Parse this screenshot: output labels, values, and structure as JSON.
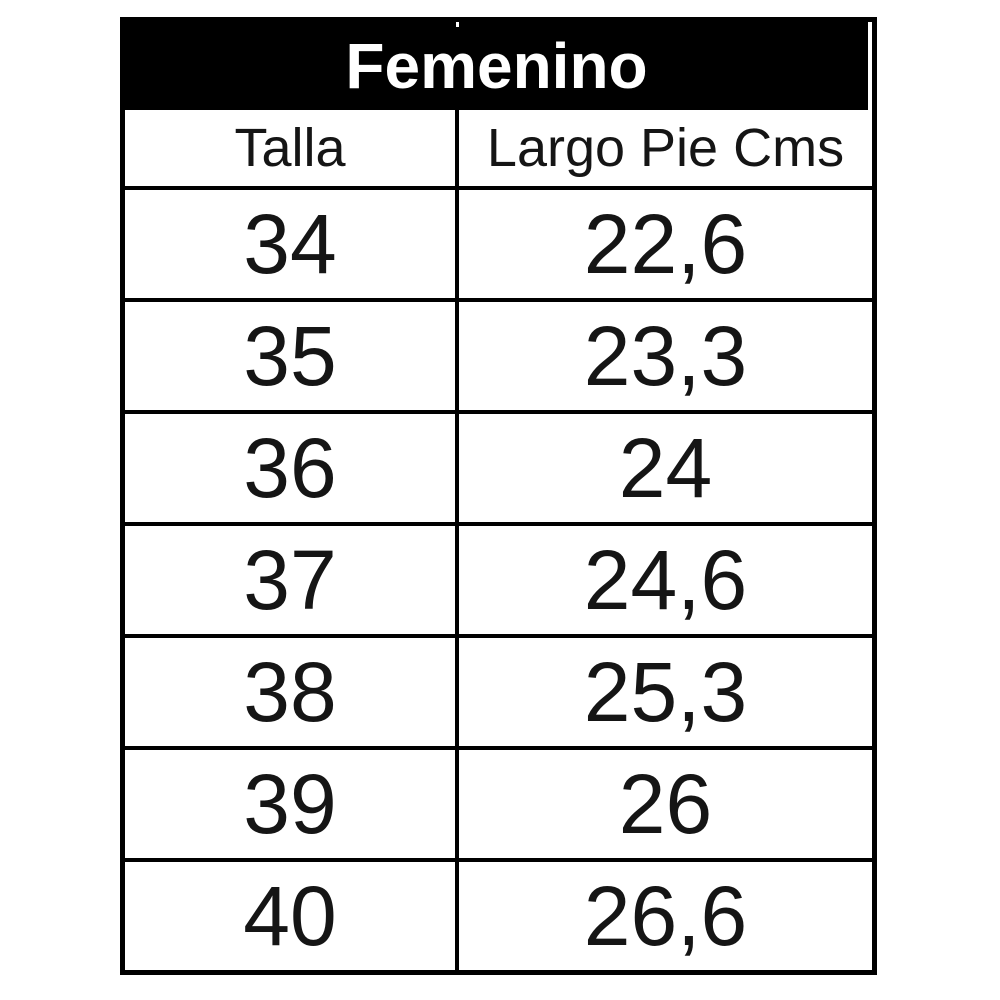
{
  "colors": {
    "title_bg": "#000000",
    "title_text": "#ffffff",
    "body_text": "#151515",
    "border": "#000000",
    "background": "#ffffff"
  },
  "table": {
    "title": "Femenino",
    "columns": {
      "size": "Talla",
      "length": "Largo Pie Cms"
    },
    "rows": [
      {
        "talla": "34",
        "largo": "22,6"
      },
      {
        "talla": "35",
        "largo": "23,3"
      },
      {
        "talla": "36",
        "largo": "24"
      },
      {
        "talla": "37",
        "largo": "24,6"
      },
      {
        "talla": "38",
        "largo": "25,3"
      },
      {
        "talla": "39",
        "largo": "26"
      },
      {
        "talla": "40",
        "largo": "26,6"
      }
    ]
  },
  "chart_data": {
    "type": "table",
    "title": "Femenino",
    "columns": [
      "Talla",
      "Largo Pie Cms"
    ],
    "categories": [
      "34",
      "35",
      "36",
      "37",
      "38",
      "39",
      "40"
    ],
    "values": [
      22.6,
      23.3,
      24,
      24.6,
      25.3,
      26,
      26.6
    ],
    "notes": "Women's shoe size chart; foot length in centimeters; decimal comma as rendered in source"
  }
}
